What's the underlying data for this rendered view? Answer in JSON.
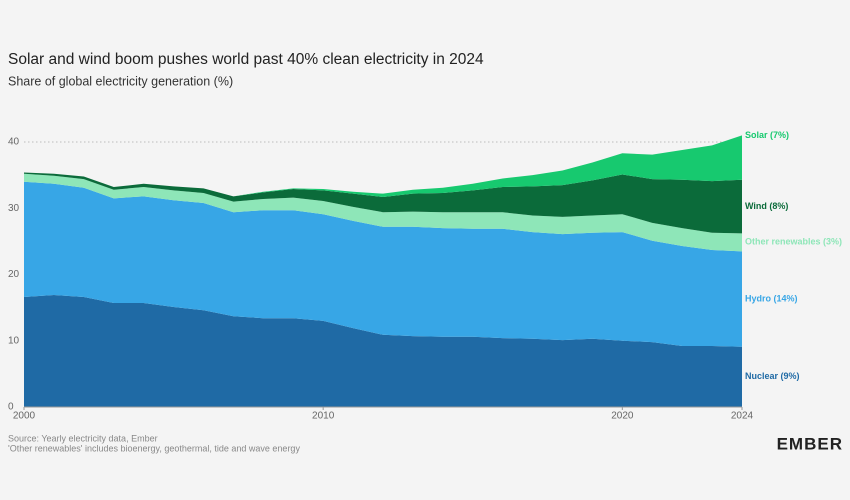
{
  "chart_data": {
    "type": "stacked_area",
    "title": "Solar and wind boom pushes world past 40% clean electricity in 2024",
    "subtitle": "Share of global electricity generation (%)",
    "x": [
      2000,
      2001,
      2002,
      2003,
      2004,
      2005,
      2006,
      2007,
      2008,
      2009,
      2010,
      2011,
      2012,
      2013,
      2014,
      2015,
      2016,
      2017,
      2018,
      2019,
      2020,
      2021,
      2022,
      2023,
      2024
    ],
    "xlim": [
      2000,
      2024
    ],
    "xticks": [
      2000,
      2010,
      2020,
      2024
    ],
    "ylim": [
      0,
      40
    ],
    "yticks": [
      0,
      10,
      20,
      30,
      40
    ],
    "grid": true,
    "series": [
      {
        "name": "Nuclear (9%)",
        "color": "#1f6aa5",
        "values": [
          16.6,
          16.9,
          16.6,
          15.7,
          15.7,
          15.1,
          14.6,
          13.7,
          13.4,
          13.4,
          13.0,
          11.9,
          10.9,
          10.7,
          10.6,
          10.6,
          10.4,
          10.3,
          10.1,
          10.3,
          10.0,
          9.8,
          9.2,
          9.2,
          9.1
        ]
      },
      {
        "name": "Hydro (14%)",
        "color": "#37a6e6",
        "values": [
          17.4,
          16.8,
          16.5,
          15.8,
          16.1,
          16.1,
          16.2,
          15.7,
          16.3,
          16.3,
          16.1,
          16.2,
          16.3,
          16.5,
          16.4,
          16.3,
          16.5,
          16.1,
          16.0,
          16.0,
          16.4,
          15.3,
          15.1,
          14.5,
          14.4
        ]
      },
      {
        "name": "Other renewables (3%)",
        "color": "#8ee6b8",
        "values": [
          1.2,
          1.2,
          1.3,
          1.3,
          1.4,
          1.5,
          1.5,
          1.6,
          1.7,
          1.9,
          2.0,
          2.1,
          2.2,
          2.3,
          2.4,
          2.5,
          2.5,
          2.5,
          2.6,
          2.6,
          2.7,
          2.7,
          2.7,
          2.6,
          2.7
        ]
      },
      {
        "name": "Wind (8%)",
        "color": "#0b6b3a",
        "values": [
          0.2,
          0.3,
          0.4,
          0.4,
          0.5,
          0.6,
          0.7,
          0.8,
          1.0,
          1.3,
          1.6,
          2.0,
          2.3,
          2.7,
          2.9,
          3.3,
          3.8,
          4.4,
          4.8,
          5.3,
          6.0,
          6.6,
          7.3,
          7.8,
          8.1
        ]
      },
      {
        "name": "Solar (7%)",
        "color": "#17c96f",
        "values": [
          0,
          0,
          0,
          0,
          0,
          0,
          0,
          0,
          0.1,
          0.1,
          0.2,
          0.3,
          0.5,
          0.6,
          0.8,
          1.0,
          1.3,
          1.7,
          2.2,
          2.7,
          3.2,
          3.7,
          4.5,
          5.4,
          6.7
        ]
      }
    ],
    "source": "Source: Yearly electricity data, Ember",
    "note": "'Other renewables' includes bioenergy, geothermal, tide and wave energy",
    "brand": "EMBER"
  }
}
